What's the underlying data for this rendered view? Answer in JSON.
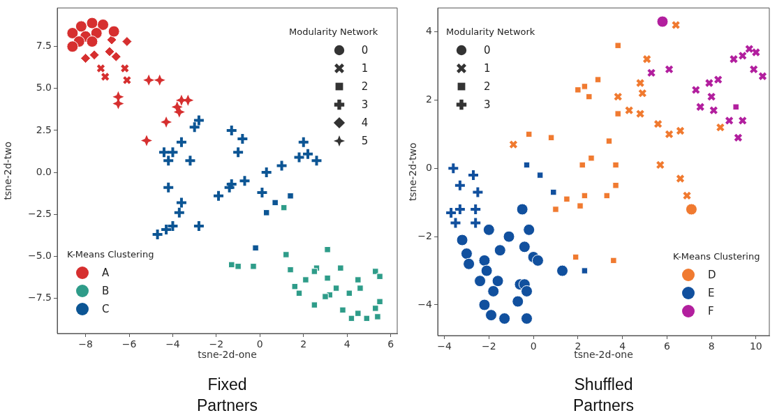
{
  "chart_data": [
    {
      "type": "scatter",
      "title": "Fixed Partners",
      "xlabel": "tsne-2d-one",
      "ylabel": "tsne-2d-two",
      "legend_title": "K-Means Clustering",
      "legend": "bottom left",
      "grid": false,
      "annotations": [
        "Modularity Network",
        "0",
        "1",
        "2",
        "3",
        "4",
        "5"
      ],
      "xlim": [
        -9.3,
        6.3
      ],
      "xticks": [
        -8,
        -6,
        -4,
        -2,
        0,
        2,
        4,
        6
      ],
      "ylim": [
        -9.6,
        9.8
      ],
      "yticks": [
        {
          "value": -7.5,
          "label": "−7.5"
        },
        {
          "value": -5,
          "label": "−5.0"
        },
        {
          "value": -2.5,
          "label": "−2.5"
        },
        {
          "value": 0,
          "label": "0.0"
        },
        {
          "value": 2.5,
          "label": "2.5"
        },
        {
          "value": 5,
          "label": "5.0"
        },
        {
          "value": 7.5,
          "label": "7.5"
        }
      ],
      "series": [
        {
          "name": "A",
          "color": "#d62f2f",
          "marker": "circle",
          "x": [
            -8.6,
            -8.2,
            -7.7,
            -7.2,
            -6.7,
            -8.0,
            -7.5,
            -8.3,
            -7.7,
            -8.6
          ],
          "values": [
            8.3,
            8.7,
            8.9,
            8.8,
            8.4,
            8.1,
            8.3,
            7.8,
            7.8,
            7.5
          ]
        },
        {
          "color": "#d62f2f",
          "marker": "x",
          "x": [
            -7.3,
            -7.1,
            -6.2,
            -6.1
          ],
          "values": [
            6.2,
            5.7,
            6.2,
            5.5
          ]
        },
        {
          "color": "#d62f2f",
          "marker": "diamond",
          "x": [
            -6.8,
            -6.1,
            -7.6,
            -6.9,
            -6.6,
            -8.0
          ],
          "values": [
            7.9,
            7.8,
            7.0,
            7.2,
            6.9,
            6.8
          ]
        },
        {
          "color": "#d62f2f",
          "marker": "star",
          "x": [
            -5.1,
            -4.6,
            -6.5,
            -6.5,
            -3.6,
            -3.3,
            -3.8,
            -3.7,
            -4.3,
            -5.2
          ],
          "values": [
            5.5,
            5.5,
            4.5,
            4.1,
            4.3,
            4.3,
            3.9,
            3.6,
            3.0,
            1.9
          ]
        },
        {
          "name": "B",
          "color": "#2e9c89",
          "marker": "square",
          "x": [
            1.1,
            -1.3,
            -1.0,
            -0.3,
            1.2,
            3.1,
            1.4,
            2.6,
            2.5,
            3.7,
            5.3,
            5.5,
            2.1,
            3.1,
            4.5,
            1.6,
            1.8,
            3.5,
            4.6,
            4.1,
            3.2,
            3.0,
            2.5,
            3.8,
            4.5,
            4.2,
            4.9,
            5.3,
            5.4,
            5.5
          ],
          "values": [
            -2.1,
            -5.5,
            -5.6,
            -5.6,
            -4.9,
            -4.6,
            -5.8,
            -5.7,
            -5.9,
            -5.7,
            -5.9,
            -6.2,
            -6.4,
            -6.3,
            -6.4,
            -6.8,
            -7.2,
            -6.9,
            -6.9,
            -7.2,
            -7.3,
            -7.4,
            -7.9,
            -8.2,
            -8.4,
            -8.7,
            -8.7,
            -8.1,
            -8.6,
            -7.7
          ]
        },
        {
          "name": "C",
          "color": "#0c5594",
          "marker": "cross",
          "x": [
            -2.8,
            -3.0,
            -3.6,
            -4.4,
            -4.0,
            -4.2,
            -3.2,
            -1.3,
            -0.8,
            -1.0,
            -4.2,
            -3.6,
            -3.7,
            -4.7,
            -4.3,
            -4.0,
            -2.8,
            -1.9,
            -1.4,
            -1.3,
            -0.7,
            0.3,
            1.0,
            2.0,
            1.8,
            2.2,
            2.6,
            0.1
          ],
          "values": [
            3.1,
            2.7,
            1.8,
            1.2,
            1.2,
            0.7,
            0.7,
            2.5,
            2.0,
            1.2,
            -0.9,
            -1.8,
            -2.4,
            -3.7,
            -3.4,
            -3.2,
            -3.2,
            -1.4,
            -0.9,
            -0.7,
            -0.5,
            0.0,
            0.4,
            1.8,
            0.9,
            1.1,
            0.7,
            -1.2
          ]
        },
        {
          "color": "#0c5594",
          "marker": "square",
          "x": [
            0.7,
            0.3,
            1.4,
            -0.2
          ],
          "values": [
            -1.8,
            -2.4,
            -1.4,
            -4.5
          ]
        }
      ]
    },
    {
      "type": "scatter",
      "title": "Shuffled Partners",
      "xlabel": "tsne-2d-one",
      "ylabel": "tsne-2d-two",
      "legend_title": "K-Means Clustering",
      "legend": "bottom right",
      "grid": false,
      "annotations": [
        "Modularity Network",
        "0",
        "1",
        "2",
        "3"
      ],
      "xlim": [
        -4.3,
        10.6
      ],
      "xticks": [
        -4,
        -2,
        0,
        2,
        4,
        6,
        8,
        10
      ],
      "ylim": [
        -4.9,
        4.7
      ],
      "yticks": [
        -4,
        -2,
        0,
        2,
        4
      ],
      "series": [
        {
          "name": "D",
          "color": "#f07a30",
          "marker": "x",
          "x": [
            6.4,
            5.1,
            4.8,
            4.9,
            3.8,
            4.3,
            4.8,
            5.6,
            6.1,
            6.6,
            8.4,
            -0.9,
            5.7,
            6.6,
            6.9
          ],
          "values": [
            4.2,
            3.2,
            2.5,
            2.2,
            2.1,
            1.7,
            1.6,
            1.3,
            1.0,
            1.1,
            1.2,
            0.7,
            0.1,
            -0.3,
            -0.8
          ]
        },
        {
          "color": "#f07a30",
          "marker": "square",
          "x": [
            3.8,
            2.9,
            2.0,
            2.3,
            2.5,
            3.8,
            -0.2,
            0.8,
            3.4,
            2.6,
            2.2,
            3.7,
            3.7,
            3.3,
            2.3,
            2.1,
            1.5,
            1.0,
            1.9,
            3.6
          ],
          "values": [
            3.6,
            2.6,
            2.3,
            2.4,
            2.1,
            1.6,
            1.0,
            0.9,
            0.8,
            0.3,
            0.1,
            0.1,
            -0.5,
            -0.8,
            -0.8,
            -1.1,
            -0.9,
            -1.2,
            -2.6,
            -2.7
          ]
        },
        {
          "color": "#f07a30",
          "marker": "circle",
          "x": [
            7.1
          ],
          "values": [
            -1.2
          ]
        },
        {
          "name": "E",
          "color": "#11509e",
          "marker": "circle",
          "x": [
            -0.5,
            -2.0,
            -0.2,
            -1.1,
            -3.2,
            -0.4,
            -1.5,
            -3.0,
            0.0,
            0.2,
            -2.2,
            -2.9,
            -2.1,
            1.3,
            -2.4,
            -1.6,
            -0.6,
            -0.4,
            -0.3,
            -1.8,
            -0.7,
            -2.2,
            -1.9,
            -1.3,
            -0.3
          ],
          "values": [
            -1.2,
            -1.8,
            -1.8,
            -2.0,
            -2.1,
            -2.3,
            -2.4,
            -2.5,
            -2.6,
            -2.7,
            -2.7,
            -2.8,
            -3.0,
            -3.0,
            -3.3,
            -3.3,
            -3.4,
            -3.4,
            -3.6,
            -3.6,
            -3.9,
            -4.0,
            -4.3,
            -4.4,
            -4.4
          ]
        },
        {
          "color": "#11509e",
          "marker": "square",
          "x": [
            -0.3,
            0.3,
            0.9,
            2.3
          ],
          "values": [
            0.1,
            -0.2,
            -0.7,
            -3.0
          ]
        },
        {
          "color": "#11509e",
          "marker": "cross",
          "x": [
            -3.6,
            -2.7,
            -3.3,
            -2.5,
            -3.3,
            -2.6,
            -3.7,
            -3.5,
            -2.6
          ],
          "values": [
            0.0,
            -0.2,
            -0.5,
            -0.7,
            -1.2,
            -1.2,
            -1.3,
            -1.6,
            -1.6
          ]
        },
        {
          "name": "F",
          "color": "#b21f9e",
          "marker": "x",
          "x": [
            5.3,
            6.1,
            7.3,
            7.9,
            8.3,
            8.0,
            7.5,
            8.1,
            8.8,
            9.4,
            9.2,
            9.0,
            9.4,
            9.7,
            10.0,
            9.9,
            10.3
          ],
          "values": [
            2.8,
            2.9,
            2.3,
            2.5,
            2.6,
            2.1,
            1.8,
            1.7,
            1.4,
            1.4,
            0.9,
            3.2,
            3.3,
            3.5,
            3.4,
            2.9,
            2.7
          ]
        },
        {
          "color": "#b21f9e",
          "marker": "circle",
          "x": [
            5.8
          ],
          "values": [
            4.3
          ]
        },
        {
          "color": "#b21f9e",
          "marker": "square",
          "x": [
            9.1
          ],
          "values": [
            1.8
          ]
        }
      ]
    }
  ]
}
